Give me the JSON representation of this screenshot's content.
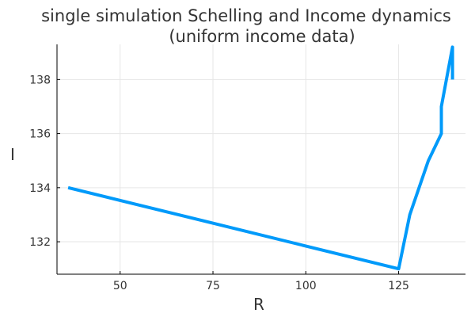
{
  "chart_data": {
    "type": "line",
    "title_line1": "single simulation Schelling and Income dynamics",
    "title_line2": "(uniform income data)",
    "xlabel": "R",
    "ylabel": "I",
    "xlim": [
      33,
      143
    ],
    "ylim": [
      130.8,
      139.3
    ],
    "xticks": [
      50,
      75,
      100,
      125
    ],
    "yticks": [
      132,
      134,
      136,
      138
    ],
    "grid": true,
    "legend": "none",
    "series": [
      {
        "color": "#009AFA",
        "x": [
          36,
          125,
          128,
          133,
          136.5,
          136.5,
          139.5,
          139.5
        ],
        "y": [
          134,
          131,
          133,
          135,
          136,
          137,
          139.2,
          138
        ]
      }
    ]
  }
}
